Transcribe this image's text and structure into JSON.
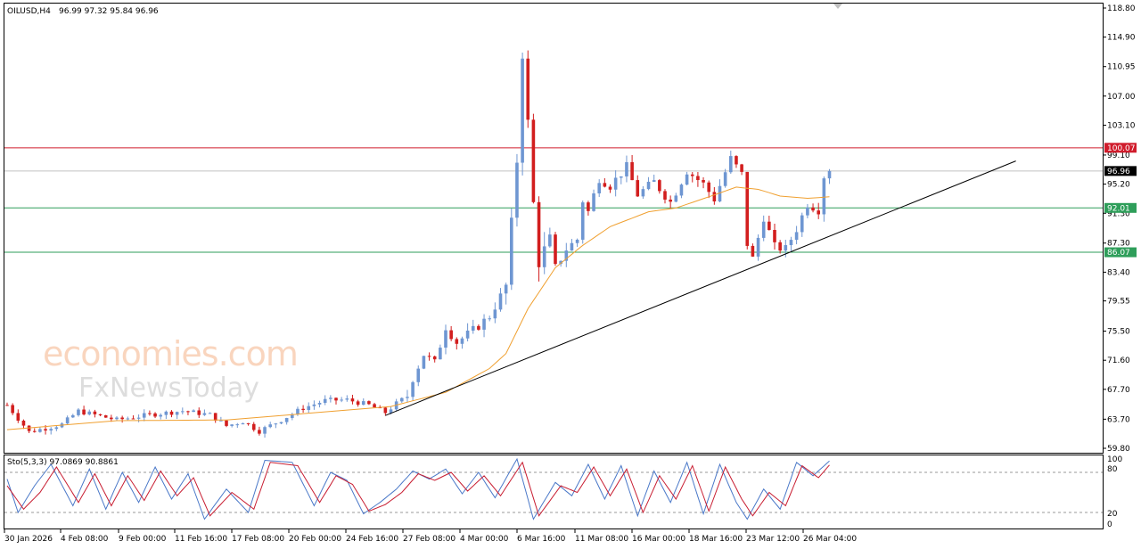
{
  "header": {
    "symbol": "OILUSD,H4",
    "ohlc": "96.99 97.32 95.84 96.96"
  },
  "watermark": {
    "line1": "economies.com",
    "line2": "FxNewsToday"
  },
  "stochastic": {
    "label": "Sto(5,3,3) 97.0869 90.8861",
    "ticks": [
      "100",
      "80",
      "20",
      "0"
    ]
  },
  "price_tags": {
    "resistance": "100.07",
    "current": "96.96",
    "support1": "92.01",
    "support2": "86.07"
  },
  "colors": {
    "bull": "#6e96d2",
    "bear": "#d21e1e",
    "ma": "#f0a030",
    "resistance": "#d01c2c",
    "support": "#2e9e5a",
    "trendline": "#000000",
    "stoch_main": "#4a78c8",
    "stoch_signal": "#c81e32"
  },
  "chart_data": {
    "type": "candlestick",
    "symbol": "OILUSD",
    "timeframe": "H4",
    "ylim": [
      59.8,
      118.8
    ],
    "y_ticks": [
      "118.80",
      "114.90",
      "110.95",
      "107.00",
      "103.10",
      "99.10",
      "95.20",
      "91.30",
      "87.30",
      "83.40",
      "79.55",
      "75.50",
      "71.60",
      "67.70",
      "63.70",
      "59.80"
    ],
    "x_ticks": [
      "30 Jan 2026",
      "4 Feb 08:00",
      "9 Feb 00:00",
      "11 Feb 16:00",
      "17 Feb 08:00",
      "20 Feb 00:00",
      "24 Feb 16:00",
      "27 Feb 08:00",
      "4 Mar 00:00",
      "6 Mar 16:00",
      "11 Mar 08:00",
      "16 Mar 00:00",
      "18 Mar 16:00",
      "23 Mar 12:00",
      "26 Mar 04:00"
    ],
    "horizontal_levels": [
      {
        "value": 100.07,
        "role": "resistance"
      },
      {
        "value": 96.96,
        "role": "current"
      },
      {
        "value": 92.01,
        "role": "support"
      },
      {
        "value": 86.07,
        "role": "support"
      }
    ],
    "trendline": {
      "from": {
        "bar": 69,
        "price": 64.2
      },
      "to": {
        "bar": 184,
        "price": 98.3
      }
    },
    "anchors": [
      [
        0,
        65.6
      ],
      [
        4,
        62.0
      ],
      [
        10,
        63.0
      ],
      [
        13,
        64.8
      ],
      [
        20,
        63.6
      ],
      [
        26,
        64.3
      ],
      [
        32,
        64.8
      ],
      [
        37,
        64.3
      ],
      [
        40,
        62.8
      ],
      [
        43,
        63.4
      ],
      [
        46,
        62.1
      ],
      [
        50,
        63.6
      ],
      [
        54,
        65.2
      ],
      [
        58,
        66.2
      ],
      [
        62,
        66.3
      ],
      [
        66,
        65.6
      ],
      [
        69,
        64.6
      ],
      [
        71,
        65.8
      ],
      [
        73,
        66.8
      ],
      [
        74,
        69.2
      ],
      [
        76,
        72.4
      ],
      [
        78,
        71.2
      ],
      [
        80,
        76.1
      ],
      [
        82,
        74.0
      ],
      [
        85,
        75.6
      ],
      [
        88,
        77.5
      ],
      [
        91,
        81.5
      ],
      [
        92,
        89.5
      ],
      [
        93,
        98.5
      ],
      [
        94,
        113.0
      ],
      [
        95,
        103.2
      ],
      [
        96,
        92.5
      ],
      [
        97,
        85.0
      ],
      [
        98,
        86.2
      ],
      [
        99,
        87.5
      ],
      [
        100,
        84.0
      ],
      [
        102,
        86.5
      ],
      [
        104,
        87.8
      ],
      [
        105,
        93.0
      ],
      [
        106,
        91.5
      ],
      [
        108,
        96.0
      ],
      [
        110,
        95.0
      ],
      [
        113,
        97.5
      ],
      [
        115,
        93.8
      ],
      [
        118,
        95.5
      ],
      [
        121,
        92.8
      ],
      [
        124,
        97.0
      ],
      [
        127,
        95.2
      ],
      [
        129,
        93.2
      ],
      [
        132,
        98.6
      ],
      [
        134,
        96.5
      ],
      [
        135,
        87.2
      ],
      [
        136,
        85.2
      ],
      [
        138,
        90.8
      ],
      [
        140,
        86.8
      ],
      [
        142,
        86.5
      ],
      [
        144,
        89.2
      ],
      [
        146,
        92.6
      ],
      [
        148,
        91.8
      ],
      [
        149,
        96.3
      ],
      [
        150,
        96.96
      ]
    ],
    "moving_average": [
      [
        0,
        62.3
      ],
      [
        20,
        63.5
      ],
      [
        40,
        63.6
      ],
      [
        60,
        64.8
      ],
      [
        70,
        65.4
      ],
      [
        80,
        67.3
      ],
      [
        88,
        70.5
      ],
      [
        91,
        72.5
      ],
      [
        95,
        78.5
      ],
      [
        100,
        84.0
      ],
      [
        105,
        87.0
      ],
      [
        110,
        89.5
      ],
      [
        117,
        91.5
      ],
      [
        122,
        92.0
      ],
      [
        128,
        93.5
      ],
      [
        133,
        94.8
      ],
      [
        137,
        94.5
      ],
      [
        141,
        93.6
      ],
      [
        146,
        93.3
      ],
      [
        150,
        93.5
      ]
    ],
    "stochastic": {
      "name": "Sto(5,3,3)",
      "main_last": 97.0869,
      "signal_last": 90.8861,
      "levels": [
        80,
        20
      ],
      "ylim": [
        0,
        100
      ],
      "main_anchors": [
        [
          0,
          70
        ],
        [
          2,
          20
        ],
        [
          5,
          60
        ],
        [
          8,
          92
        ],
        [
          12,
          30
        ],
        [
          15,
          85
        ],
        [
          18,
          25
        ],
        [
          21,
          80
        ],
        [
          24,
          35
        ],
        [
          27,
          88
        ],
        [
          30,
          40
        ],
        [
          33,
          78
        ],
        [
          36,
          10
        ],
        [
          40,
          55
        ],
        [
          44,
          20
        ],
        [
          47,
          98
        ],
        [
          52,
          95
        ],
        [
          56,
          30
        ],
        [
          59,
          80
        ],
        [
          62,
          68
        ],
        [
          65,
          18
        ],
        [
          68,
          35
        ],
        [
          71,
          55
        ],
        [
          74,
          82
        ],
        [
          77,
          70
        ],
        [
          80,
          85
        ],
        [
          83,
          48
        ],
        [
          86,
          80
        ],
        [
          89,
          42
        ],
        [
          93,
          100
        ],
        [
          96,
          10
        ],
        [
          100,
          65
        ],
        [
          103,
          45
        ],
        [
          106,
          92
        ],
        [
          109,
          40
        ],
        [
          112,
          90
        ],
        [
          115,
          15
        ],
        [
          118,
          82
        ],
        [
          121,
          35
        ],
        [
          124,
          95
        ],
        [
          127,
          18
        ],
        [
          130,
          92
        ],
        [
          133,
          35
        ],
        [
          135,
          10
        ],
        [
          138,
          55
        ],
        [
          141,
          25
        ],
        [
          144,
          95
        ],
        [
          147,
          75
        ],
        [
          150,
          97
        ]
      ],
      "signal_anchors": [
        [
          0,
          60
        ],
        [
          3,
          25
        ],
        [
          6,
          50
        ],
        [
          9,
          88
        ],
        [
          13,
          35
        ],
        [
          16,
          78
        ],
        [
          19,
          30
        ],
        [
          22,
          75
        ],
        [
          25,
          38
        ],
        [
          28,
          82
        ],
        [
          31,
          45
        ],
        [
          34,
          72
        ],
        [
          37,
          15
        ],
        [
          41,
          50
        ],
        [
          45,
          25
        ],
        [
          48,
          95
        ],
        [
          53,
          90
        ],
        [
          57,
          35
        ],
        [
          60,
          75
        ],
        [
          63,
          62
        ],
        [
          66,
          22
        ],
        [
          69,
          32
        ],
        [
          72,
          50
        ],
        [
          75,
          78
        ],
        [
          78,
          68
        ],
        [
          81,
          80
        ],
        [
          84,
          52
        ],
        [
          87,
          75
        ],
        [
          90,
          45
        ],
        [
          94,
          95
        ],
        [
          97,
          15
        ],
        [
          101,
          60
        ],
        [
          104,
          50
        ],
        [
          107,
          88
        ],
        [
          110,
          45
        ],
        [
          113,
          85
        ],
        [
          116,
          20
        ],
        [
          119,
          75
        ],
        [
          122,
          40
        ],
        [
          125,
          90
        ],
        [
          128,
          22
        ],
        [
          131,
          88
        ],
        [
          134,
          40
        ],
        [
          136,
          15
        ],
        [
          139,
          50
        ],
        [
          142,
          30
        ],
        [
          145,
          90
        ],
        [
          148,
          72
        ],
        [
          150,
          91
        ]
      ]
    }
  }
}
